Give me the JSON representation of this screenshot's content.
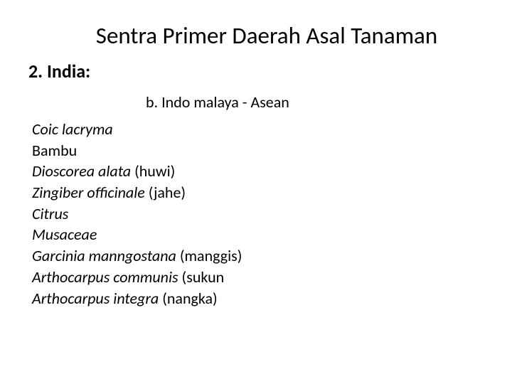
{
  "title": "Sentra Primer Daerah Asal Tanaman",
  "subheading": "2.  India:",
  "subtitle": "b. Indo malaya - Asean",
  "items": [
    {
      "italic": "Coic lacryma",
      "normal": ""
    },
    {
      "italic": "",
      "normal": "Bambu"
    },
    {
      "italic": "Dioscorea alata ",
      "normal": "(huwi)"
    },
    {
      "italic": "Zingiber officinale ",
      "normal": "(jahe)"
    },
    {
      "italic": "Citrus",
      "normal": ""
    },
    {
      "italic": "Musaceae",
      "normal": ""
    },
    {
      "italic": "Garcinia manngostana ",
      "normal": "(manggis)"
    },
    {
      "italic": "Arthocarpus communis ",
      "normal": "(sukun"
    },
    {
      "italic": "Arthocarpus integra ",
      "normal": "(nangka)"
    }
  ],
  "colors": {
    "background": "#ffffff",
    "text": "#000000"
  },
  "fonts": {
    "title_size": 33,
    "subheading_size": 26,
    "body_size": 22
  }
}
